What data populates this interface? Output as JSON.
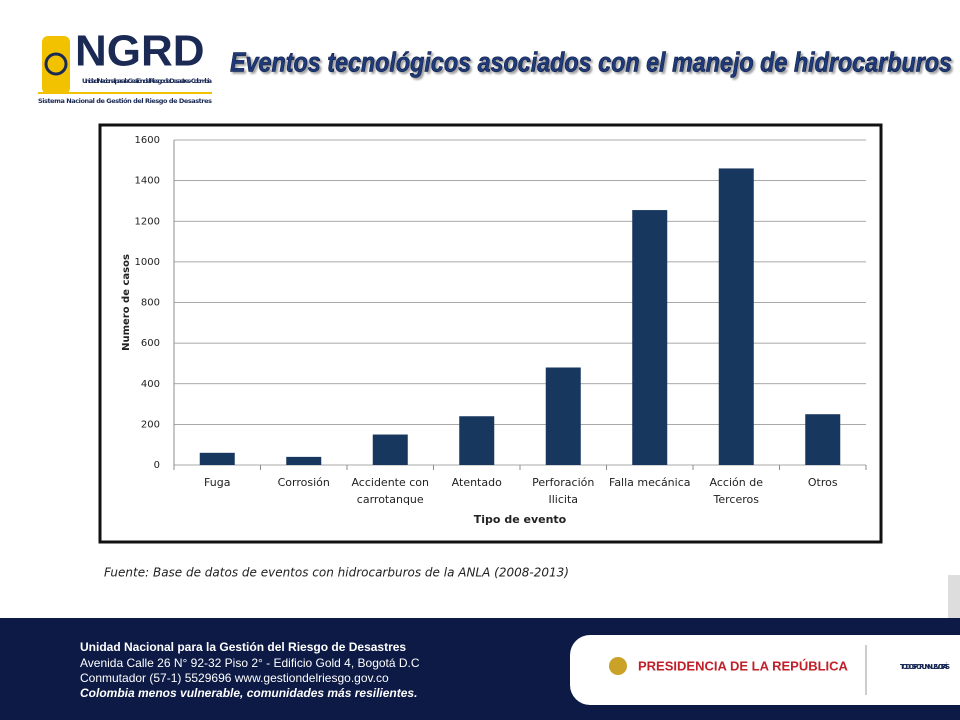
{
  "header": {
    "logo": "NGRD",
    "logo_subtitle": "Unidad Nacional para la Gestión del Riesgo de Desastres - Colombia",
    "logo_system": "Sistema Nacional de Gestión del Riesgo de Desastres",
    "title": "Eventos tecnológicos asociados con el manejo de hidrocarburos"
  },
  "chart_data": {
    "type": "bar",
    "x_label": "Tipo de evento",
    "y_label": "Numero de casos",
    "categories": [
      "Fuga",
      "Corrosión",
      "Accidente con carrotanque",
      "Atentado",
      "Perforación Ilicita",
      "Falla mecánica",
      "Acción de Terceros",
      "Otros"
    ],
    "values": [
      60,
      40,
      150,
      240,
      480,
      1255,
      1460,
      250
    ],
    "color": "#17375e",
    "ylim": [
      0,
      1600
    ],
    "yticks": [
      0,
      200,
      400,
      600,
      800,
      1000,
      1200,
      1400,
      1600
    ],
    "grid": true
  },
  "source": "Fuente: Base de datos de eventos  con hidrocarburos de la ANLA   (2008-2013)",
  "footer": {
    "lines": [
      "Unidad Nacional para la Gestión del Riesgo de Desastres",
      "Avenida Calle 26 N° 92-32 Piso 2° - Edificio Gold 4, Bogotá D.C",
      "Conmutador (57-1) 5529696  www.gestiondelriesgo.gov.co",
      "Colombia menos vulnerable, comunidades más resilientes."
    ],
    "presidencia": "PRESIDENCIA DE LA REPÚBLICA",
    "slogan": "TODOS POR UN NUEVO PAÍS"
  }
}
